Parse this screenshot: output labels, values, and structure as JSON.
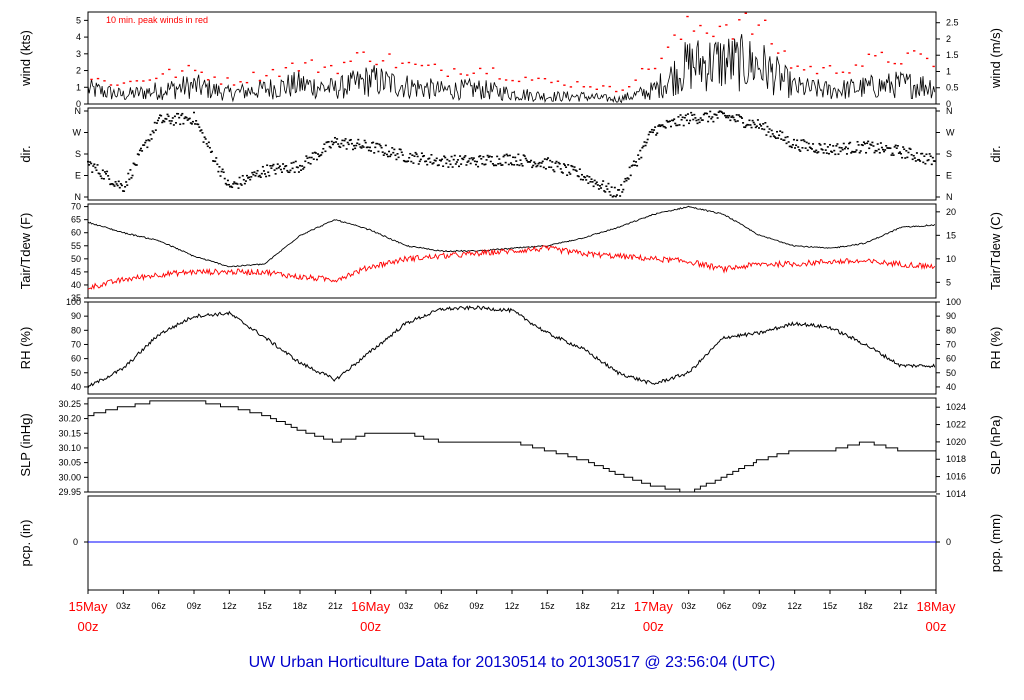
{
  "title": "UW Urban Horticulture Data for 20130514  to  20130517 @ 23:56:04  (UTC)",
  "colors": {
    "title": "#0000cc",
    "date_label": "#ff0000",
    "peak": "#ff0000",
    "dew": "#ff0000",
    "precip": "#0000ff",
    "main": "#000000"
  },
  "chart_data": [
    {
      "id": "wind",
      "type": "line",
      "ylabel_left": "wind (kts)",
      "ylabel_right": "wind (m/s)",
      "annotation": "10 min. peak winds in red",
      "ylim": [
        0,
        5.5
      ],
      "left_ticks": [
        "0",
        "1",
        "2",
        "3",
        "4",
        "5"
      ],
      "right_ticks": [
        "0",
        "0.5",
        "1",
        "1.5",
        "2",
        "2.5"
      ],
      "series": [
        {
          "role": "wind speed (kts)",
          "x": [
            0,
            3,
            6,
            9,
            12,
            15,
            18,
            21,
            24,
            27,
            30,
            33,
            36,
            39,
            42,
            45,
            48,
            51,
            54,
            57,
            60,
            63,
            66,
            69,
            72
          ],
          "values": [
            1.0,
            0.6,
            0.9,
            1.2,
            0.7,
            1.0,
            1.3,
            1.0,
            1.6,
            1.2,
            0.9,
            1.0,
            0.7,
            0.5,
            0.5,
            0.3,
            0.9,
            2.6,
            2.8,
            2.6,
            1.1,
            0.9,
            1.1,
            1.3,
            1.2
          ]
        },
        {
          "role": "10 min. peak",
          "x": [
            0,
            3,
            6,
            9,
            12,
            15,
            18,
            21,
            24,
            27,
            30,
            33,
            36,
            39,
            42,
            45,
            48,
            51,
            54,
            57,
            60,
            63,
            66,
            69,
            72
          ],
          "values": [
            1.5,
            1.2,
            1.7,
            2.0,
            1.3,
            1.8,
            2.3,
            2.2,
            3.0,
            2.3,
            2.0,
            2.2,
            1.7,
            1.3,
            1.2,
            0.8,
            2.3,
            4.5,
            4.8,
            4.6,
            2.2,
            2.0,
            2.5,
            2.8,
            2.5
          ]
        }
      ]
    },
    {
      "id": "direction",
      "type": "scatter",
      "ylabel_left": "dir.",
      "ylabel_right": "dir.",
      "left_ticks": [
        "N",
        "E",
        "S",
        "W",
        "N"
      ],
      "right_ticks": [
        "N",
        "E",
        "S",
        "W",
        "N"
      ],
      "ylim": [
        0,
        360
      ],
      "x": [
        0,
        3,
        6,
        9,
        12,
        15,
        18,
        21,
        24,
        27,
        30,
        33,
        36,
        39,
        42,
        45,
        48,
        51,
        54,
        57,
        60,
        63,
        66,
        69,
        72
      ],
      "values": [
        140,
        40,
        320,
        330,
        40,
        110,
        130,
        230,
        210,
        170,
        150,
        150,
        160,
        140,
        90,
        10,
        280,
        330,
        340,
        300,
        220,
        200,
        210,
        190,
        150
      ]
    },
    {
      "id": "temperature",
      "type": "line",
      "ylabel_left": "Tair/Tdew (F)",
      "ylabel_right": "Tair/Tdew (C)",
      "ylim": [
        35,
        71
      ],
      "left_ticks": [
        "35",
        "40",
        "45",
        "50",
        "55",
        "60",
        "65",
        "70"
      ],
      "right_ticks": [
        "5",
        "10",
        "15",
        "20"
      ],
      "series": [
        {
          "role": "air temperature",
          "x": [
            0,
            3,
            6,
            9,
            12,
            15,
            18,
            21,
            24,
            27,
            30,
            33,
            36,
            39,
            42,
            45,
            48,
            51,
            54,
            57,
            60,
            63,
            66,
            69,
            72
          ],
          "values": [
            64,
            60,
            57,
            51,
            47,
            48,
            59,
            65,
            61,
            55,
            53,
            53,
            54,
            55,
            58,
            62,
            67,
            70,
            67,
            59,
            55,
            54,
            56,
            62,
            63
          ]
        },
        {
          "role": "dew point",
          "x": [
            0,
            3,
            6,
            9,
            12,
            15,
            18,
            21,
            24,
            27,
            30,
            33,
            36,
            39,
            42,
            45,
            48,
            51,
            54,
            57,
            60,
            63,
            66,
            69,
            72
          ],
          "values": [
            39,
            42,
            44,
            45,
            45,
            45,
            43,
            42,
            47,
            50,
            51,
            52,
            53,
            54,
            52,
            51,
            50,
            49,
            46,
            48,
            48,
            49,
            49,
            48,
            47
          ]
        }
      ]
    },
    {
      "id": "humidity",
      "type": "line",
      "ylabel_left": "RH (%)",
      "ylabel_right": "RH (%)",
      "ylim": [
        35,
        100
      ],
      "left_ticks": [
        "40",
        "50",
        "60",
        "70",
        "80",
        "90",
        "100"
      ],
      "right_ticks": [
        "40",
        "50",
        "60",
        "70",
        "80",
        "90",
        "100"
      ],
      "x": [
        0,
        3,
        6,
        9,
        12,
        15,
        18,
        21,
        24,
        27,
        30,
        33,
        36,
        39,
        42,
        45,
        48,
        51,
        54,
        57,
        60,
        63,
        66,
        69,
        72
      ],
      "values": [
        40,
        53,
        77,
        90,
        92,
        75,
        57,
        45,
        65,
        85,
        95,
        96,
        94,
        78,
        67,
        50,
        42,
        50,
        75,
        78,
        85,
        82,
        70,
        55,
        55
      ]
    },
    {
      "id": "pressure",
      "type": "line",
      "ylabel_left": "SLP (inHg)",
      "ylabel_right": "SLP (hPa)",
      "ylim": [
        29.95,
        30.27
      ],
      "left_ticks": [
        "29.95",
        "30.00",
        "30.05",
        "30.10",
        "30.15",
        "30.20",
        "30.25"
      ],
      "right_ticks": [
        "1014",
        "1016",
        "1018",
        "1020",
        "1022",
        "1024"
      ],
      "x": [
        0,
        3,
        6,
        9,
        12,
        15,
        18,
        21,
        24,
        27,
        30,
        33,
        36,
        39,
        42,
        45,
        48,
        51,
        54,
        57,
        60,
        63,
        66,
        69,
        72
      ],
      "values": [
        30.21,
        30.24,
        30.26,
        30.26,
        30.24,
        30.21,
        30.16,
        30.12,
        30.15,
        30.15,
        30.12,
        30.12,
        30.12,
        30.09,
        30.06,
        30.01,
        29.97,
        29.95,
        30.0,
        30.06,
        30.09,
        30.09,
        30.12,
        30.09,
        30.09
      ]
    },
    {
      "id": "precipitation",
      "type": "line",
      "ylabel_left": "pcp. (in)",
      "ylabel_right": "pcp. (mm)",
      "left_ticks": [
        "0"
      ],
      "right_ticks": [
        "0"
      ],
      "x": [
        0,
        72
      ],
      "values": [
        0,
        0
      ]
    }
  ],
  "x_axis": {
    "range_hours": [
      0,
      72
    ],
    "hour_ticks": [
      "03z",
      "06z",
      "09z",
      "12z",
      "15z",
      "18z",
      "21z"
    ],
    "date_labels": [
      {
        "day": "15May",
        "hour": "00z"
      },
      {
        "day": "16May",
        "hour": "00z"
      },
      {
        "day": "17May",
        "hour": "00z"
      },
      {
        "day": "18May",
        "hour": "00z"
      }
    ]
  }
}
